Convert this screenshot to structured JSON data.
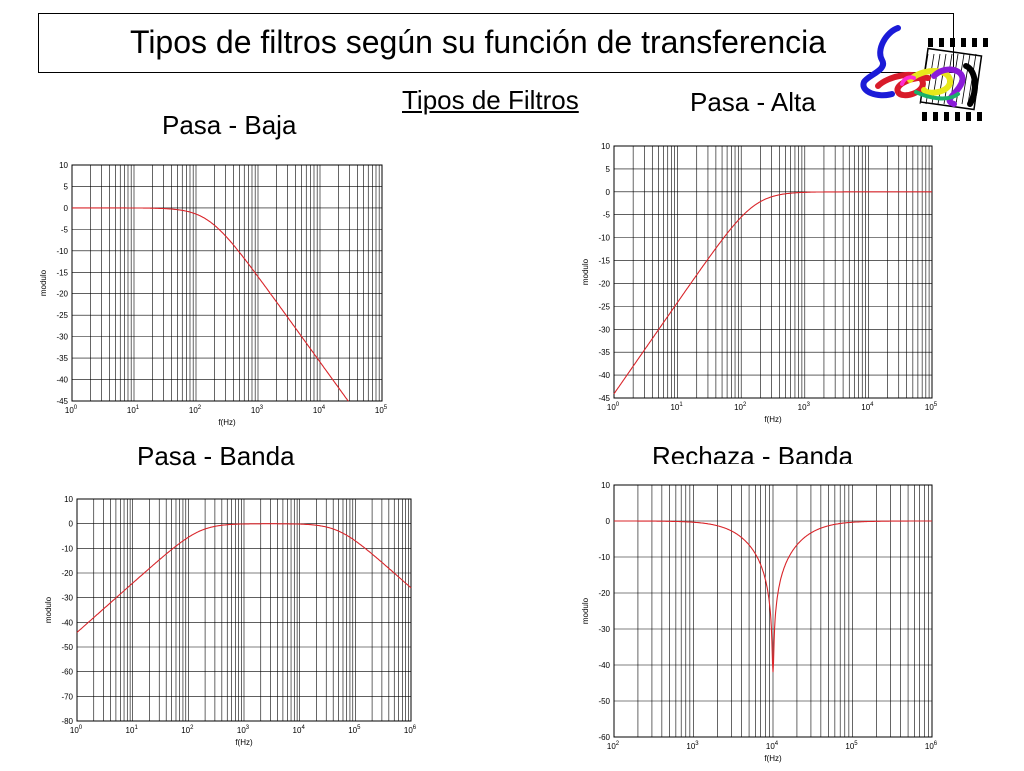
{
  "header": {
    "title": "Tipos de filtros según su función de transferencia",
    "subtitle": "Tipos de Filtros"
  },
  "logo": {
    "name": "logo-icon",
    "colors": [
      "#1b1bd8",
      "#d81b2a",
      "#e8e81b",
      "#8a1bd8",
      "#1bb06a",
      "#ff2bd0"
    ]
  },
  "chart_data": [
    {
      "type": "line",
      "label": "Pasa - Baja",
      "xlabel": "f(Hz)",
      "ylabel": "modulo",
      "xscale": "log",
      "xlim": [
        1,
        100000
      ],
      "ylim": [
        -45,
        10
      ],
      "yticks": [
        10,
        5,
        0,
        -5,
        -10,
        -15,
        -20,
        -25,
        -30,
        -35,
        -40,
        -45
      ],
      "xtick_exps": [
        0,
        1,
        2,
        3,
        4,
        5
      ],
      "grid": true,
      "line_color": "#d9252a",
      "filter": {
        "kind": "lowpass",
        "fc": 160,
        "order": 1
      },
      "series": [
        {
          "x": [
            1,
            10,
            100,
            160,
            300,
            1000,
            3000,
            10000,
            28000
          ],
          "y": [
            0,
            0,
            -0.5,
            -3,
            -5.6,
            -16,
            -25.5,
            -36,
            -45
          ]
        }
      ]
    },
    {
      "type": "line",
      "label": "Pasa - Alta",
      "xlabel": "f(Hz)",
      "ylabel": "modulo",
      "xscale": "log",
      "xlim": [
        1,
        100000
      ],
      "ylim": [
        -45,
        10
      ],
      "yticks": [
        10,
        5,
        0,
        -5,
        -10,
        -15,
        -20,
        -25,
        -30,
        -35,
        -40,
        -45
      ],
      "xtick_exps": [
        0,
        1,
        2,
        3,
        4,
        5
      ],
      "grid": true,
      "line_color": "#d9252a",
      "filter": {
        "kind": "highpass",
        "fc": 160,
        "order": 1
      },
      "series": [
        {
          "x": [
            1,
            10,
            100,
            160,
            300,
            1000,
            10000,
            100000
          ],
          "y": [
            -44,
            -24,
            -5.5,
            -3,
            -1.1,
            0,
            0,
            0
          ]
        }
      ]
    },
    {
      "type": "line",
      "label": "Pasa - Banda",
      "xlabel": "f(Hz)",
      "ylabel": "modulo",
      "xscale": "log",
      "xlim": [
        1,
        1000000
      ],
      "ylim": [
        -80,
        10
      ],
      "yticks": [
        10,
        0,
        -10,
        -20,
        -30,
        -40,
        -50,
        -60,
        -70,
        -80
      ],
      "xtick_exps": [
        0,
        1,
        2,
        3,
        4,
        5,
        6
      ],
      "grid": true,
      "line_color": "#d9252a",
      "filter": {
        "kind": "bandpass",
        "f1": 160,
        "f2": 50000,
        "order": 1
      },
      "series": [
        {
          "x": [
            1,
            10,
            100,
            1000,
            10000,
            100000,
            1000000
          ],
          "y": [
            -44,
            -24,
            -5.5,
            0,
            -0.5,
            -7,
            -26
          ]
        }
      ]
    },
    {
      "type": "line",
      "label": "Rechaza - Banda",
      "xlabel": "f(Hz)",
      "ylabel": "modulo",
      "xscale": "log",
      "xlim": [
        100,
        1000000
      ],
      "ylim": [
        -60,
        10
      ],
      "yticks": [
        10,
        0,
        -10,
        -20,
        -30,
        -40,
        -50,
        -60
      ],
      "xtick_exps": [
        2,
        3,
        4,
        5,
        6
      ],
      "grid": true,
      "line_color": "#d9252a",
      "filter": {
        "kind": "notch",
        "f0": 10000,
        "Q": 0.35,
        "depth": 42
      },
      "series": [
        {
          "x": [
            100,
            1000,
            5000,
            9000,
            10000,
            11000,
            20000,
            100000,
            1000000
          ],
          "y": [
            0,
            0,
            -1,
            -10,
            -42,
            -10,
            -1,
            0,
            0
          ]
        }
      ]
    }
  ]
}
